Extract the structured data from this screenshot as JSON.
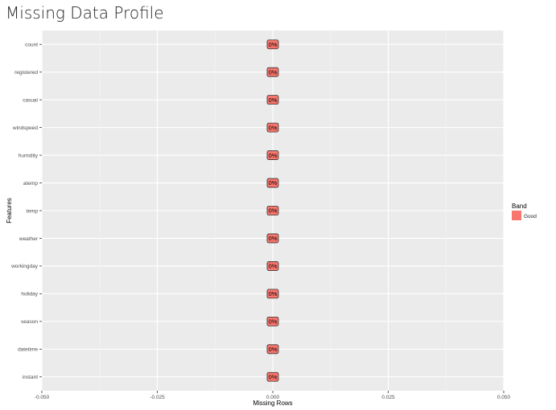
{
  "chart_data": {
    "type": "bar",
    "orientation": "horizontal",
    "title": "Missing Data Profile",
    "xlabel": "Missing Rows",
    "ylabel": "Features",
    "xlim": [
      -0.05,
      0.05
    ],
    "xticks": [
      -0.05,
      -0.025,
      0.0,
      0.025,
      0.05
    ],
    "xtick_labels": [
      "-0.050",
      "-0.025",
      "0.000",
      "0.025",
      "0.050"
    ],
    "categories": [
      "count",
      "registered",
      "casual",
      "windspeed",
      "humidity",
      "atemp",
      "temp",
      "weather",
      "workingday",
      "holiday",
      "season",
      "datetime",
      "instant"
    ],
    "values": [
      0,
      0,
      0,
      0,
      0,
      0,
      0,
      0,
      0,
      0,
      0,
      0,
      0
    ],
    "labels": [
      "0%",
      "0%",
      "0%",
      "0%",
      "0%",
      "0%",
      "0%",
      "0%",
      "0%",
      "0%",
      "0%",
      "0%",
      "0%"
    ],
    "band": [
      "Good",
      "Good",
      "Good",
      "Good",
      "Good",
      "Good",
      "Good",
      "Good",
      "Good",
      "Good",
      "Good",
      "Good",
      "Good"
    ],
    "legend": {
      "title": "Band",
      "position": "right",
      "entries": [
        {
          "label": "Good",
          "color": "#F8766D"
        }
      ]
    },
    "grid": true,
    "colors": {
      "panel": "#EBEBEB",
      "grid_major": "#FFFFFF",
      "grid_minor": "#F5F5F5",
      "bar": "#F8766D",
      "label_fill": "#F8766D",
      "label_border": "#333333"
    }
  }
}
